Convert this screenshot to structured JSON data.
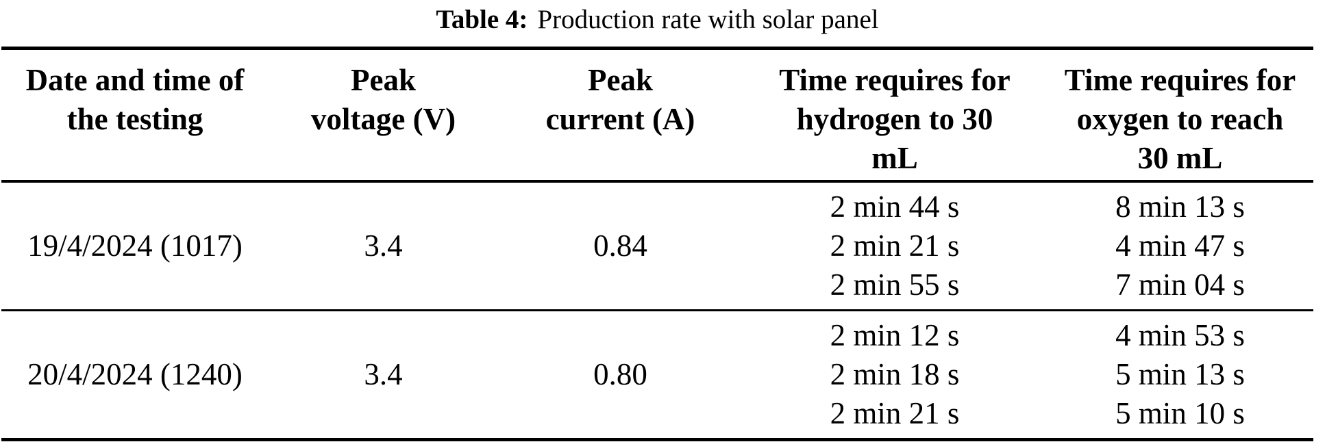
{
  "caption": {
    "label": "Table 4:",
    "text": "Production rate with solar panel"
  },
  "table": {
    "headers": [
      {
        "lines": [
          "Date and time of",
          "the testing"
        ]
      },
      {
        "lines": [
          "Peak",
          "voltage (V)"
        ]
      },
      {
        "lines": [
          "Peak",
          "current (A)"
        ]
      },
      {
        "lines": [
          "Time requires for",
          "hydrogen to 30",
          "mL"
        ]
      },
      {
        "lines": [
          "Time requires for",
          "oxygen to reach",
          "30 mL"
        ]
      }
    ],
    "rows": [
      {
        "date": "19/4/2024 (1017)",
        "peak_voltage": "3.4",
        "peak_current": "0.84",
        "hydrogen_times": [
          "2 min 44 s",
          "2 min 21 s",
          "2 min 55 s"
        ],
        "oxygen_times": [
          "8 min 13 s",
          "4 min 47 s",
          "7 min 04 s"
        ]
      },
      {
        "date": "20/4/2024 (1240)",
        "peak_voltage": "3.4",
        "peak_current": "0.80",
        "hydrogen_times": [
          "2 min 12 s",
          "2 min 18 s",
          "2 min 21 s"
        ],
        "oxygen_times": [
          "4 min 53 s",
          "5 min 13 s",
          "5 min 10 s"
        ]
      }
    ]
  }
}
